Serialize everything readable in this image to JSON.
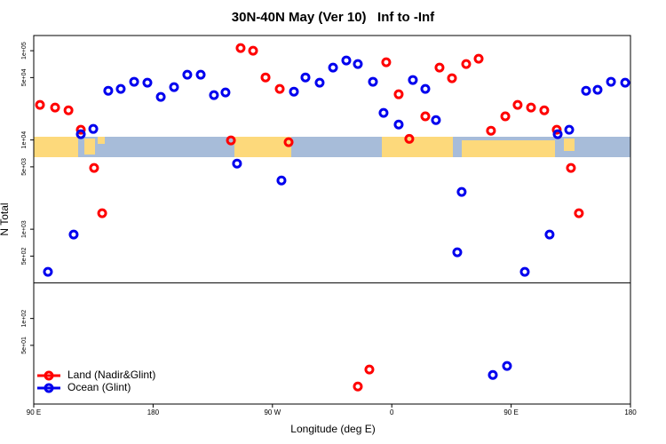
{
  "chart_data": {
    "type": "scatter",
    "title": "30N-40N May (Ver 10)   Inf to -Inf",
    "x_label": "Longitude (deg E)",
    "y_label": "N Total",
    "log_y": true,
    "legend": "bottom-left",
    "panel_break": 250,
    "xlim": [
      90,
      540
    ],
    "ylim": [
      11,
      148000
    ],
    "xticks": [
      {
        "value": 90,
        "label": "90 E"
      },
      180,
      {
        "value": 270,
        "label": "90 W"
      },
      {
        "value": 360,
        "label": "0"
      },
      {
        "value": 450,
        "label": "90 E"
      },
      {
        "value": 540,
        "label": "180"
      }
    ],
    "yticks": [
      {
        "value": 50,
        "label": "5e+01"
      },
      {
        "value": 100,
        "label": "1e+02"
      },
      {
        "value": 500,
        "label": "5e+02"
      },
      {
        "value": 1000,
        "label": "1e+03"
      },
      {
        "value": 5000,
        "label": "5e+03"
      },
      {
        "value": 10000,
        "label": "1e+04"
      },
      {
        "value": 50000,
        "label": "5e+04"
      },
      {
        "value": 100000,
        "label": "1e+05"
      }
    ],
    "series": [
      {
        "name": "Land (Nadir&Glint)",
        "color": "#ff0000",
        "x": [
          94.7,
          106.1,
          116.2,
          125.5,
          135.5,
          141.6,
          246.0,
          255.4,
          264.8,
          275.5,
          238.7,
          282.2,
          334.4,
          343.1,
          355.8,
          365.2,
          373.2,
          385.3,
          396.0,
          405.4,
          416.1,
          425.5,
          434.8,
          445.6,
          454.9,
          465.0,
          475.0,
          484.4,
          495.1,
          501.1
        ],
        "values": [
          24700,
          23100,
          21500,
          13000,
          4860,
          1510,
          107000,
          100000,
          50200,
          37300,
          9890,
          9440,
          17.3,
          26.8,
          74300,
          32500,
          10300,
          18400,
          64700,
          49200,
          70900,
          81300,
          12700,
          18400,
          24700,
          23100,
          21500,
          13000,
          4860,
          1510
        ]
      },
      {
        "name": "Ocean (Glint)",
        "color": "#0000ee",
        "x": [
          100.7,
          120.1,
          125.5,
          134.9,
          146.2,
          155.6,
          165.7,
          175.7,
          185.8,
          195.8,
          205.8,
          215.9,
          225.9,
          234.6,
          243.3,
          276.8,
          286.2,
          294.9,
          305.6,
          315.7,
          325.7,
          334.4,
          345.8,
          353.8,
          365.2,
          375.9,
          385.3,
          393.3,
          409.4,
          412.7,
          436.2,
          446.9,
          460.3,
          479.0,
          485.1,
          493.8,
          506.5,
          515.2,
          525.3,
          536.0
        ],
        "values": [
          333,
          871,
          11600,
          13300,
          35600,
          37300,
          44900,
          43800,
          30400,
          39100,
          53800,
          53800,
          31800,
          34100,
          5440,
          3520,
          34800,
          50200,
          43800,
          64700,
          77800,
          70900,
          44900,
          20100,
          14900,
          47000,
          37300,
          16700,
          551,
          2620,
          23.3,
          29.4,
          333,
          871,
          11600,
          13000,
          35600,
          36500,
          44900,
          43800
        ]
      }
    ]
  }
}
